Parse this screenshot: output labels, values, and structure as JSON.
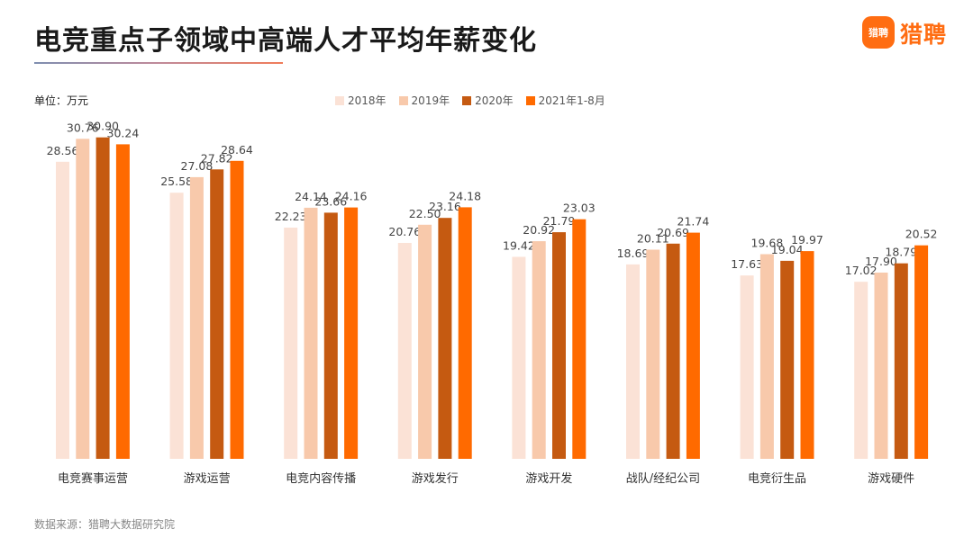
{
  "title": "电竞重点子领域中高端人才平均年薪变化",
  "logo": {
    "badge": "猎聘",
    "text": "猎聘"
  },
  "unit_label": "单位：万元",
  "source": "数据来源：猎聘大数据研究院",
  "chart_data": {
    "type": "bar",
    "title": "电竞重点子领域中高端人才平均年薪变化",
    "ylabel": "单位：万元",
    "ylim": [
      0,
      32
    ],
    "grid": false,
    "legend_position": "top-center",
    "categories": [
      "电竞赛事运营",
      "游戏运营",
      "电竞内容传播",
      "游戏发行",
      "游戏开发",
      "战队/经纪公司",
      "电竞衍生品",
      "游戏硬件"
    ],
    "series": [
      {
        "name": "2018年",
        "color": "#fbe2d6",
        "values": [
          28.56,
          25.58,
          22.23,
          20.76,
          19.42,
          18.69,
          17.63,
          17.02
        ]
      },
      {
        "name": "2019年",
        "color": "#f8c9ab",
        "values": [
          30.76,
          27.08,
          24.14,
          22.5,
          20.92,
          20.11,
          19.68,
          17.9
        ]
      },
      {
        "name": "2020年",
        "color": "#c55a11",
        "values": [
          30.9,
          27.82,
          23.66,
          23.16,
          21.79,
          20.69,
          19.04,
          18.79
        ]
      },
      {
        "name": "2021年1-8月",
        "color": "#ff6a00",
        "values": [
          30.24,
          28.64,
          24.16,
          24.18,
          23.03,
          21.74,
          19.97,
          20.52
        ]
      }
    ]
  }
}
